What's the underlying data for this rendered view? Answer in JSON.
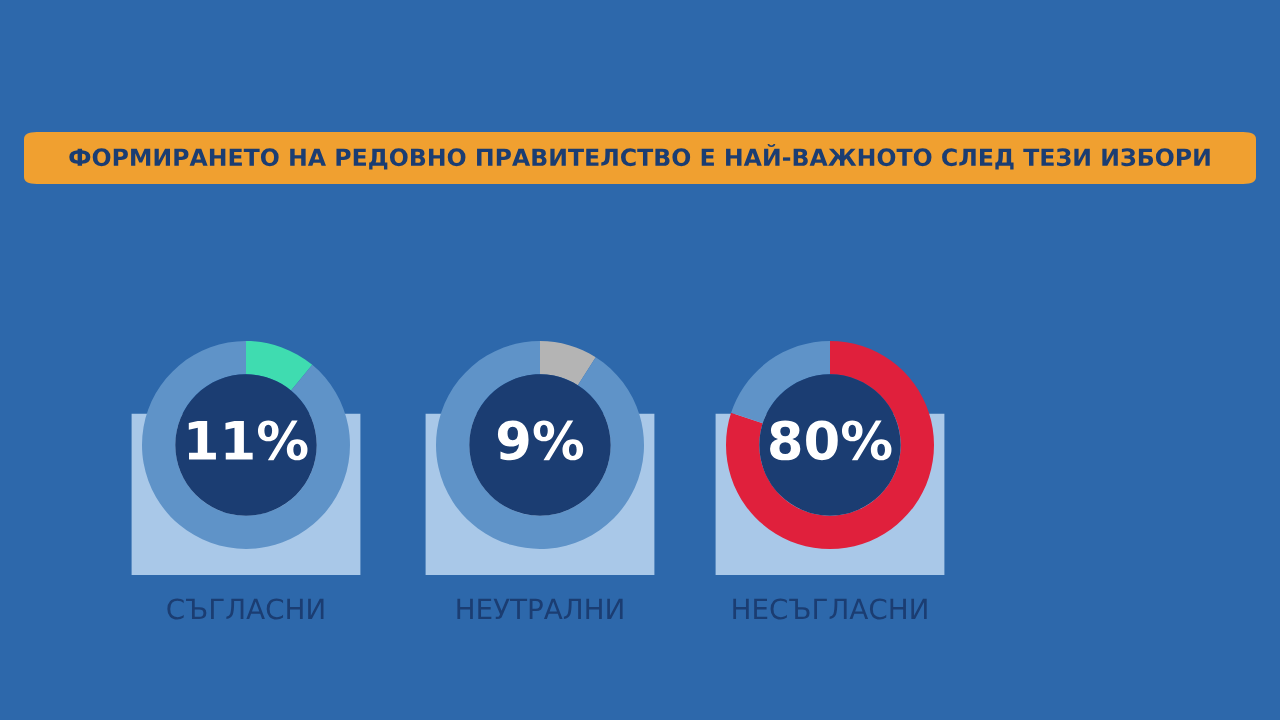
{
  "chart_data": [
    {
      "type": "other",
      "title": "ФОРМИРАНЕТО НА РЕДОВНО ПРАВИТЕЛСТВО Е НАЙ-ВАЖНОТО СЛЕД ТЕЗИ ИЗБОРИ"
    },
    {
      "type": "donut",
      "title": "СЪГЛАСНИ",
      "categories": [
        null,
        null
      ],
      "values": [
        11,
        89
      ],
      "colors": [
        "#3fdcb0",
        "#5f93c8"
      ],
      "value_labels": [
        "11%",
        null
      ]
    },
    {
      "type": "donut",
      "title": "НЕУТРАЛНИ",
      "categories": [
        null,
        null
      ],
      "values": [
        9,
        91
      ],
      "colors": [
        "#b4b4b4",
        "#5f93c8"
      ],
      "value_labels": [
        "9%",
        null
      ]
    },
    {
      "type": "donut",
      "title": "НЕСЪГЛАСНИ",
      "categories": [
        null,
        null
      ],
      "values": [
        80,
        20
      ],
      "colors": [
        "#e0203c",
        "#5f93c8"
      ],
      "value_labels": [
        "80%",
        null
      ]
    }
  ]
}
